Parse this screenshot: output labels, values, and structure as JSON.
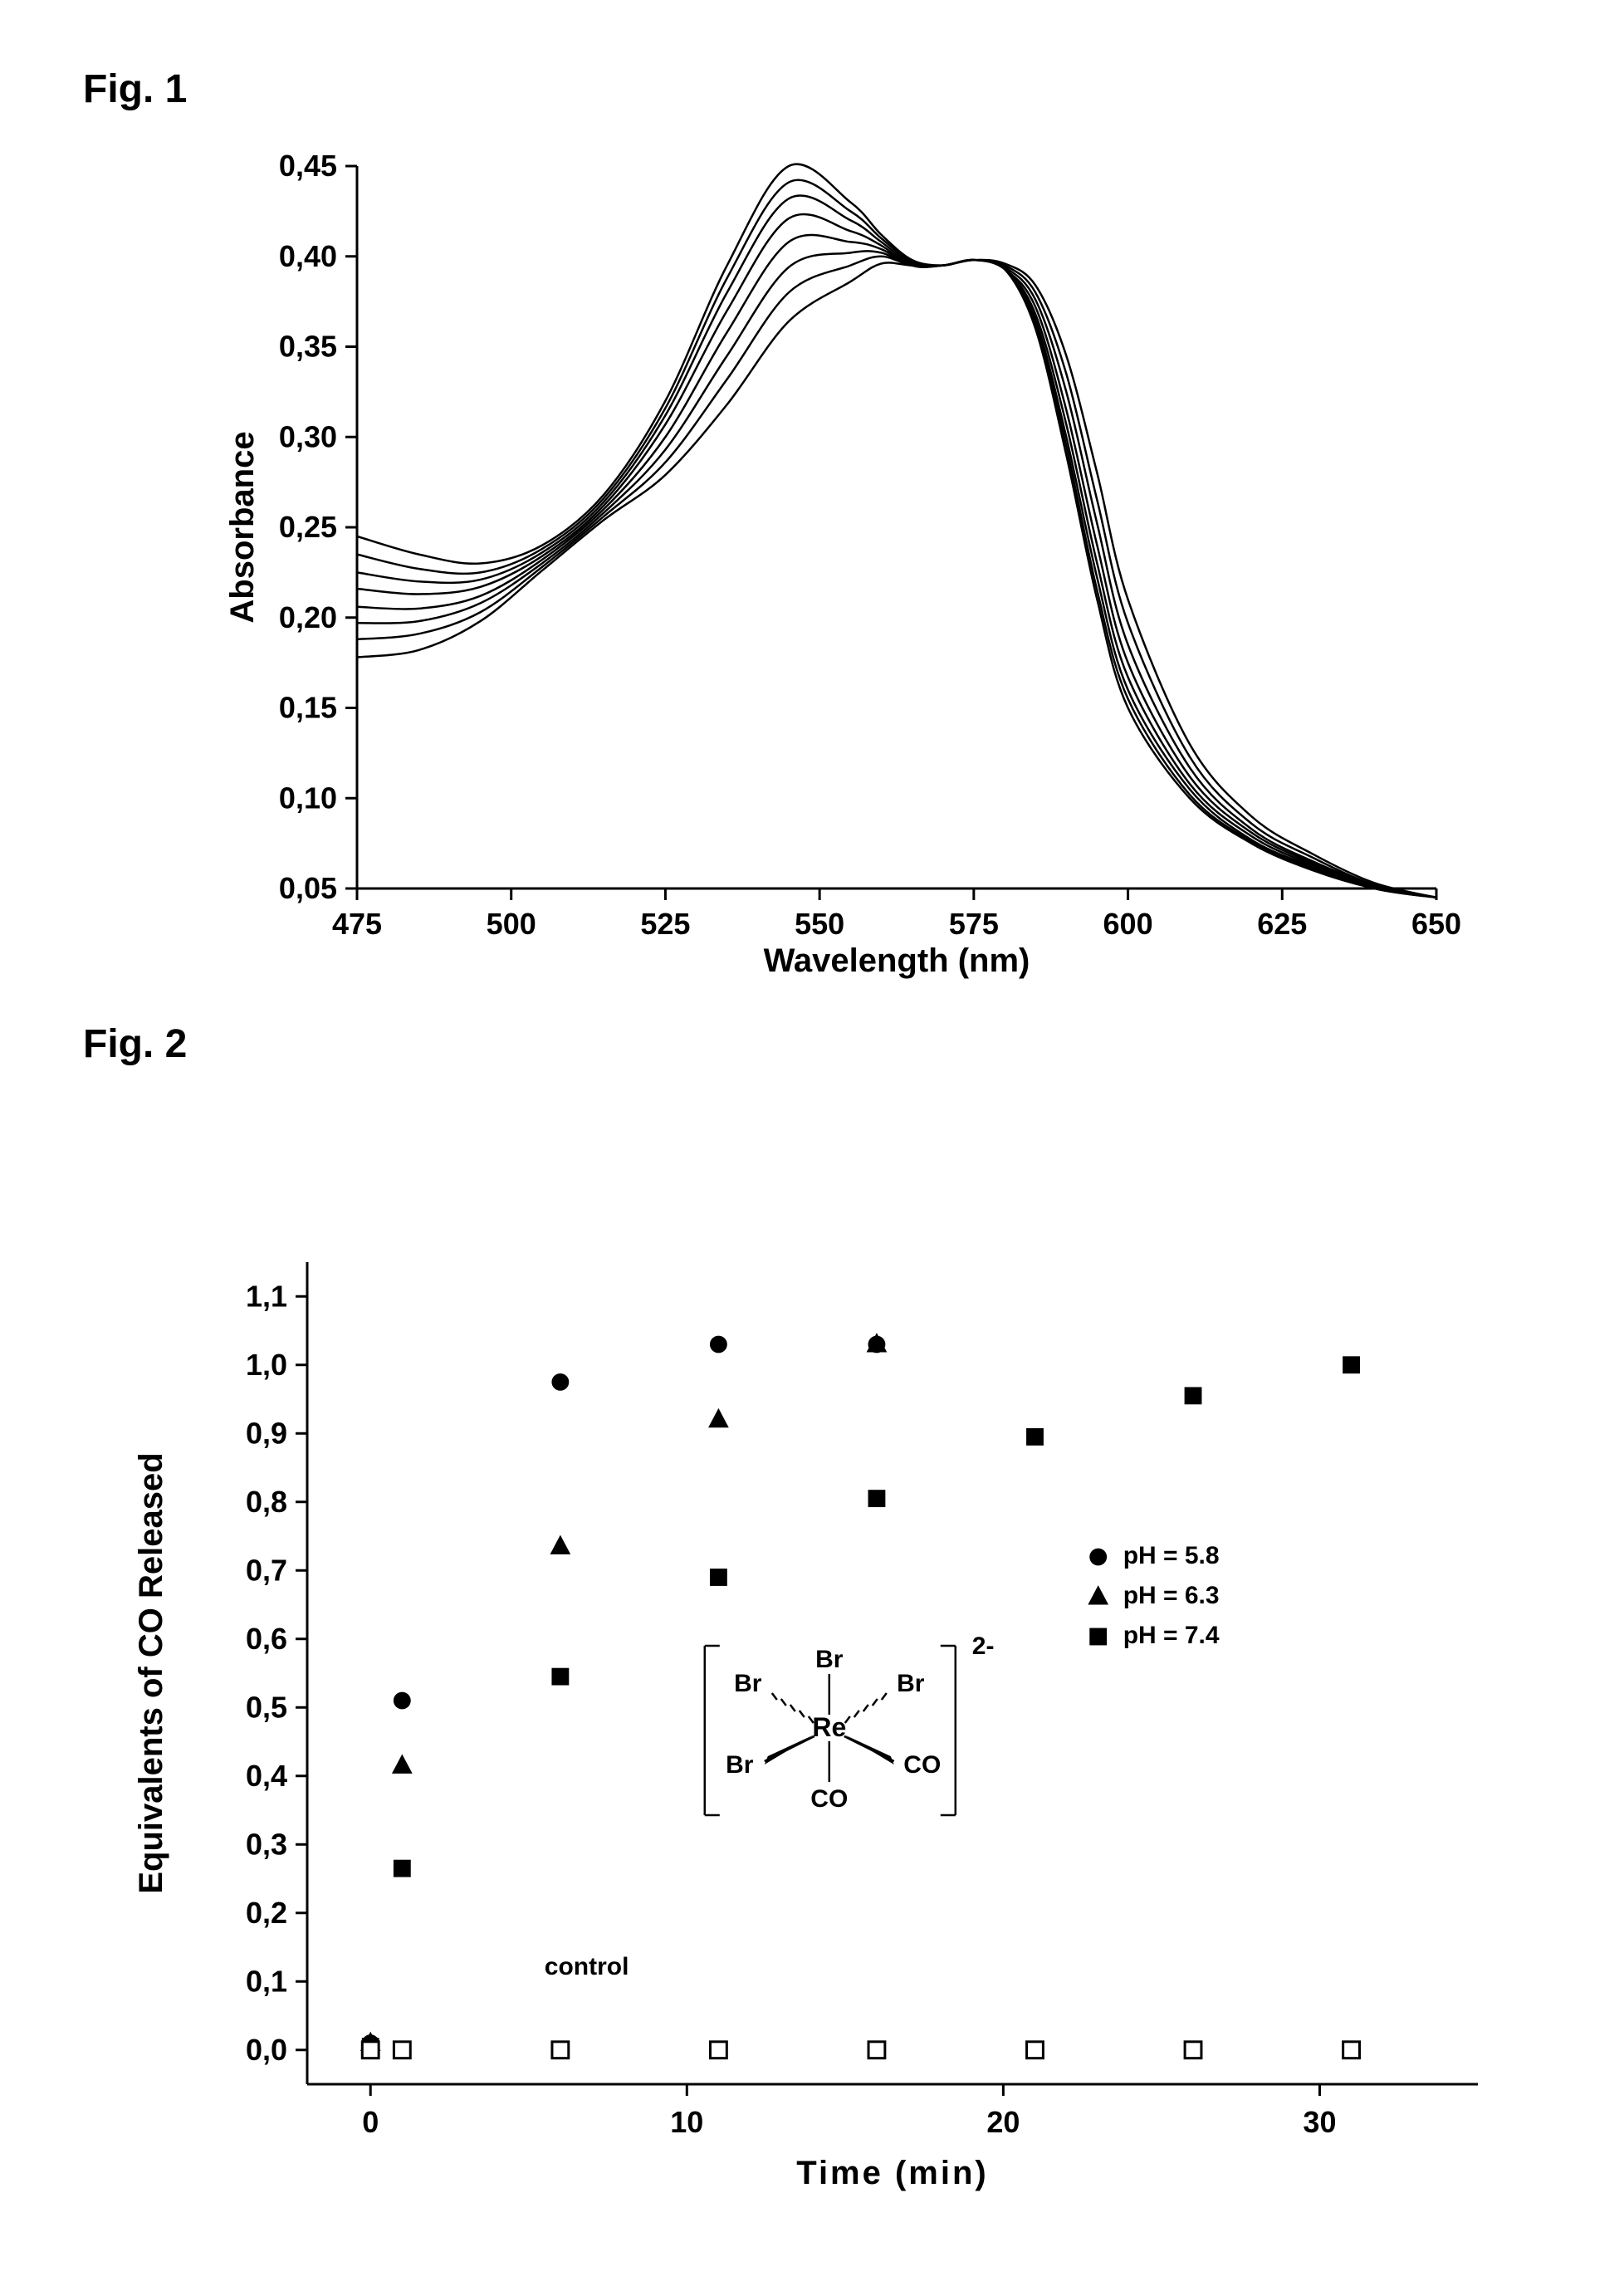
{
  "figure1": {
    "label": "Fig. 1",
    "label_fontsize": 48,
    "type": "line",
    "xlabel": "Wavelength (nm)",
    "ylabel": "Absorbance",
    "label_fontsize_axis": 40,
    "tick_fontsize": 36,
    "xlim": [
      475,
      650
    ],
    "ylim": [
      0.05,
      0.45
    ],
    "xticks": [
      475,
      500,
      525,
      550,
      575,
      600,
      625,
      650
    ],
    "yticks": [
      0.05,
      0.1,
      0.15,
      0.2,
      0.25,
      0.3,
      0.35,
      0.4,
      0.45
    ],
    "ytick_labels": [
      "0,05",
      "0,10",
      "0,15",
      "0,20",
      "0,25",
      "0,30",
      "0,35",
      "0,40",
      "0,45"
    ],
    "line_color": "#000000",
    "line_width": 2.5,
    "background_color": "#ffffff",
    "series": [
      {
        "x": [
          475,
          485,
          495,
          505,
          515,
          525,
          535,
          545,
          555,
          560,
          565,
          570,
          575,
          580,
          585,
          590,
          595,
          600,
          610,
          620,
          630,
          640,
          650
        ],
        "y": [
          0.245,
          0.235,
          0.23,
          0.24,
          0.268,
          0.32,
          0.395,
          0.45,
          0.43,
          0.412,
          0.398,
          0.395,
          0.398,
          0.393,
          0.36,
          0.29,
          0.21,
          0.15,
          0.1,
          0.075,
          0.06,
          0.05,
          0.045
        ]
      },
      {
        "x": [
          475,
          485,
          495,
          505,
          515,
          525,
          535,
          545,
          555,
          560,
          565,
          570,
          575,
          580,
          585,
          590,
          595,
          600,
          610,
          620,
          630,
          640,
          650
        ],
        "y": [
          0.235,
          0.227,
          0.225,
          0.238,
          0.266,
          0.316,
          0.388,
          0.441,
          0.425,
          0.41,
          0.397,
          0.395,
          0.398,
          0.393,
          0.362,
          0.295,
          0.215,
          0.155,
          0.102,
          0.076,
          0.061,
          0.05,
          0.045
        ]
      },
      {
        "x": [
          475,
          485,
          495,
          505,
          515,
          525,
          535,
          545,
          555,
          560,
          565,
          570,
          575,
          580,
          585,
          590,
          595,
          600,
          610,
          620,
          630,
          640,
          650
        ],
        "y": [
          0.225,
          0.22,
          0.221,
          0.236,
          0.264,
          0.312,
          0.38,
          0.432,
          0.42,
          0.408,
          0.396,
          0.395,
          0.398,
          0.393,
          0.365,
          0.3,
          0.222,
          0.16,
          0.105,
          0.077,
          0.062,
          0.05,
          0.045
        ]
      },
      {
        "x": [
          475,
          485,
          495,
          505,
          515,
          525,
          535,
          545,
          555,
          560,
          565,
          570,
          575,
          580,
          585,
          590,
          595,
          600,
          610,
          620,
          630,
          640,
          650
        ],
        "y": [
          0.216,
          0.213,
          0.217,
          0.234,
          0.262,
          0.307,
          0.37,
          0.421,
          0.414,
          0.406,
          0.395,
          0.395,
          0.398,
          0.393,
          0.368,
          0.307,
          0.23,
          0.167,
          0.108,
          0.079,
          0.063,
          0.051,
          0.045
        ]
      },
      {
        "x": [
          475,
          485,
          495,
          505,
          515,
          525,
          535,
          545,
          555,
          560,
          565,
          570,
          575,
          580,
          585,
          590,
          595,
          600,
          610,
          620,
          630,
          640,
          650
        ],
        "y": [
          0.206,
          0.205,
          0.212,
          0.232,
          0.26,
          0.3,
          0.358,
          0.408,
          0.408,
          0.404,
          0.395,
          0.395,
          0.398,
          0.393,
          0.372,
          0.315,
          0.24,
          0.175,
          0.112,
          0.081,
          0.064,
          0.051,
          0.045
        ]
      },
      {
        "x": [
          475,
          485,
          495,
          505,
          515,
          525,
          535,
          545,
          555,
          560,
          565,
          570,
          575,
          580,
          585,
          590,
          595,
          600,
          610,
          620,
          630,
          640,
          650
        ],
        "y": [
          0.197,
          0.198,
          0.208,
          0.23,
          0.258,
          0.293,
          0.345,
          0.394,
          0.402,
          0.402,
          0.395,
          0.395,
          0.398,
          0.394,
          0.376,
          0.325,
          0.252,
          0.185,
          0.117,
          0.083,
          0.065,
          0.052,
          0.045
        ]
      },
      {
        "x": [
          475,
          485,
          495,
          505,
          515,
          525,
          535,
          545,
          555,
          560,
          565,
          570,
          575,
          580,
          585,
          590,
          595,
          600,
          610,
          620,
          630,
          640,
          650
        ],
        "y": [
          0.188,
          0.191,
          0.203,
          0.228,
          0.256,
          0.286,
          0.332,
          0.38,
          0.395,
          0.4,
          0.395,
          0.395,
          0.398,
          0.395,
          0.38,
          0.335,
          0.265,
          0.197,
          0.123,
          0.086,
          0.067,
          0.052,
          0.045
        ]
      },
      {
        "x": [
          475,
          485,
          495,
          505,
          515,
          525,
          535,
          545,
          555,
          560,
          565,
          570,
          575,
          580,
          585,
          590,
          595,
          600,
          610,
          620,
          630,
          640,
          650
        ],
        "y": [
          0.178,
          0.182,
          0.198,
          0.226,
          0.254,
          0.279,
          0.318,
          0.364,
          0.386,
          0.396,
          0.395,
          0.395,
          0.398,
          0.396,
          0.384,
          0.345,
          0.28,
          0.21,
          0.13,
          0.09,
          0.069,
          0.053,
          0.045
        ]
      }
    ]
  },
  "figure2": {
    "label": "Fig. 2",
    "label_fontsize": 48,
    "type": "scatter",
    "xlabel": "Time (min)",
    "ylabel": "Equivalents of CO Released",
    "label_fontsize_axis": 40,
    "tick_fontsize": 36,
    "xlim": [
      -2,
      35
    ],
    "ylim": [
      -0.05,
      1.15
    ],
    "xticks": [
      0,
      10,
      20,
      30
    ],
    "yticks": [
      0.0,
      0.1,
      0.2,
      0.3,
      0.4,
      0.5,
      0.6,
      0.7,
      0.8,
      0.9,
      1.0,
      1.1
    ],
    "ytick_labels": [
      "0,0",
      "0,1",
      "0,2",
      "0,3",
      "0,4",
      "0,5",
      "0,6",
      "0,7",
      "0,8",
      "0,9",
      "1,0",
      "1,1"
    ],
    "marker_size": 16,
    "background_color": "#ffffff",
    "legend": [
      {
        "marker": "circle",
        "label": "pH = 5.8"
      },
      {
        "marker": "triangle",
        "label": "pH = 6.3"
      },
      {
        "marker": "square",
        "label": "pH = 7.4"
      }
    ],
    "control_label": "control",
    "series": {
      "ph58": {
        "marker": "circle",
        "x": [
          0,
          1,
          6,
          11,
          16
        ],
        "y": [
          0.01,
          0.51,
          0.975,
          1.03,
          1.03
        ]
      },
      "ph63": {
        "marker": "triangle",
        "x": [
          0,
          1,
          6,
          11,
          16
        ],
        "y": [
          0.01,
          0.415,
          0.735,
          0.92,
          1.03
        ]
      },
      "ph74": {
        "marker": "square_filled",
        "x": [
          0,
          1,
          6,
          11,
          16,
          21,
          26,
          31
        ],
        "y": [
          0.005,
          0.265,
          0.545,
          0.69,
          0.805,
          0.895,
          0.955,
          1.0
        ]
      },
      "control": {
        "marker": "square_open",
        "x": [
          0,
          1,
          6,
          11,
          16,
          21,
          26,
          31
        ],
        "y": [
          0,
          0,
          0,
          0,
          0,
          0,
          0,
          0
        ]
      }
    },
    "molecule": {
      "center": "Re",
      "ligands": [
        "Br",
        "Br",
        "Br",
        "Br",
        "CO",
        "CO"
      ],
      "charge": "2-"
    }
  }
}
